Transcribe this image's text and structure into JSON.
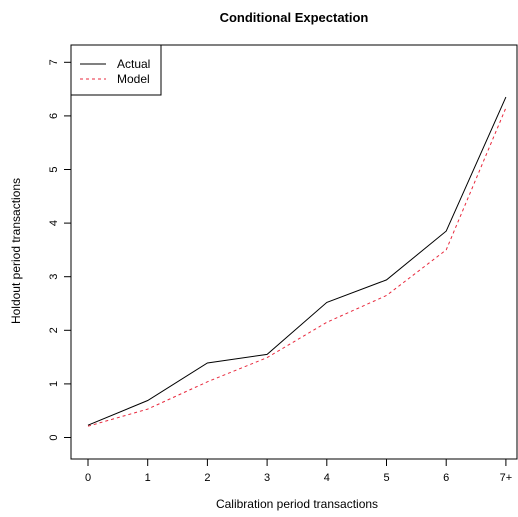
{
  "chart_data": {
    "type": "line",
    "title": "Conditional Expectation",
    "xlabel": "Calibration period transactions",
    "ylabel": "Holdout period transactions",
    "categories": [
      "0",
      "1",
      "2",
      "3",
      "4",
      "5",
      "6",
      "7+"
    ],
    "yticks": [
      "0",
      "1",
      "2",
      "3",
      "4",
      "5",
      "6",
      "7"
    ],
    "ylim": [
      0,
      7
    ],
    "grid": false,
    "legend_position": "top-left",
    "series": [
      {
        "name": "Actual",
        "color": "#000000",
        "dash": "solid",
        "values": [
          0.23,
          0.69,
          1.39,
          1.55,
          2.52,
          2.94,
          3.85,
          6.35
        ]
      },
      {
        "name": "Model",
        "color": "#e8283c",
        "dash": "dashed",
        "values": [
          0.21,
          0.53,
          1.04,
          1.49,
          2.15,
          2.65,
          3.5,
          6.15
        ]
      }
    ]
  }
}
